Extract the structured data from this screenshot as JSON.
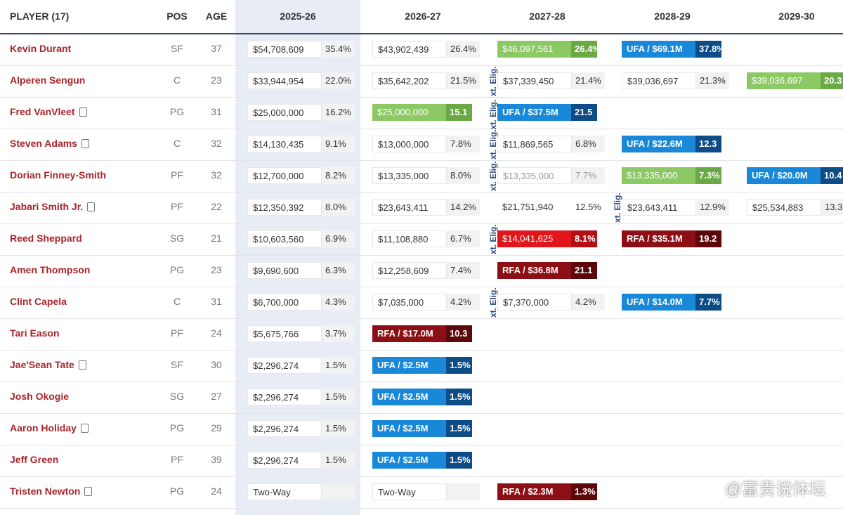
{
  "table": {
    "columns": [
      "PLAYER (17)",
      "POS",
      "AGE",
      "2025-26",
      "2026-27",
      "2027-28",
      "2028-29",
      "2029-30"
    ],
    "rows": [
      {
        "player": "Kevin Durant",
        "pos": "SF",
        "age": "37",
        "cells": [
          {
            "amount": "$54,708,609",
            "pct": "35.4%",
            "style": "plain"
          },
          {
            "amount": "$43,902,439",
            "pct": "26.4%",
            "style": "plain"
          },
          {
            "amount": "$46,097,561",
            "pct": "26.4%",
            "style": "green"
          },
          {
            "amount": "UFA / $69.1M",
            "pct": "37.8%",
            "style": "ufa"
          }
        ]
      },
      {
        "player": "Alperen Sengun",
        "pos": "C",
        "age": "23",
        "cells": [
          {
            "amount": "$33,944,954",
            "pct": "22.0%",
            "style": "plain"
          },
          {
            "amount": "$35,642,202",
            "pct": "21.5%",
            "style": "plain"
          },
          {
            "amount": "$37,339,450",
            "pct": "21.4%",
            "style": "plain",
            "ext": "xt. Elig."
          },
          {
            "amount": "$39,036,697",
            "pct": "21.3%",
            "style": "plain"
          },
          {
            "amount": "$39,036,697",
            "pct": "20.3",
            "style": "green"
          }
        ]
      },
      {
        "player": "Fred VanVleet",
        "pos": "PG",
        "age": "31",
        "icon": true,
        "cells": [
          {
            "amount": "$25,000,000",
            "pct": "16.2%",
            "style": "plain"
          },
          {
            "amount": "$25,000,000",
            "pct": "15.1",
            "style": "green"
          },
          {
            "amount": "UFA / $37.5M",
            "pct": "21.5",
            "style": "ufa"
          }
        ]
      },
      {
        "player": "Steven Adams",
        "pos": "C",
        "age": "32",
        "icon": true,
        "cells": [
          {
            "amount": "$14,130,435",
            "pct": "9.1%",
            "style": "plain"
          },
          {
            "amount": "$13,000,000",
            "pct": "7.8%",
            "style": "plain"
          },
          {
            "amount": "$11,869,565",
            "pct": "6.8%",
            "style": "plain",
            "ext": "xt. Elig.xt. Elig."
          },
          {
            "amount": "UFA / $22.6M",
            "pct": "12.3",
            "style": "ufa"
          }
        ]
      },
      {
        "player": "Dorian Finney-Smith",
        "pos": "PF",
        "age": "32",
        "cells": [
          {
            "amount": "$12,700,000",
            "pct": "8.2%",
            "style": "plain"
          },
          {
            "amount": "$13,335,000",
            "pct": "8.0%",
            "style": "plain"
          },
          {
            "amount": "$13,335,000",
            "pct": "7.7%",
            "style": "grey",
            "ext": "xt. Elig."
          },
          {
            "amount": "$13,335,000",
            "pct": "7.3%",
            "style": "green"
          },
          {
            "amount": "UFA / $20.0M",
            "pct": "10.4",
            "style": "ufa"
          }
        ]
      },
      {
        "player": "Jabari Smith Jr.",
        "pos": "PF",
        "age": "22",
        "icon": true,
        "cells": [
          {
            "amount": "$12,350,392",
            "pct": "8.0%",
            "style": "plain"
          },
          {
            "amount": "$23,643,411",
            "pct": "14.2%",
            "style": "plain"
          },
          {
            "amount": "$21,751,940",
            "pct": "12.5%",
            "style": "open"
          },
          {
            "amount": "$23,643,411",
            "pct": "12.9%",
            "style": "plain",
            "ext": "xt. Elig."
          },
          {
            "amount": "$25,534,883",
            "pct": "13.3",
            "style": "plain"
          }
        ]
      },
      {
        "player": "Reed Sheppard",
        "pos": "SG",
        "age": "21",
        "cells": [
          {
            "amount": "$10,603,560",
            "pct": "6.9%",
            "style": "plain"
          },
          {
            "amount": "$11,108,880",
            "pct": "6.7%",
            "style": "plain"
          },
          {
            "amount": "$14,041,625",
            "pct": "8.1%",
            "style": "red",
            "ext": "xt. Elig."
          },
          {
            "amount": "RFA / $35.1M",
            "pct": "19.2",
            "style": "rfa"
          }
        ]
      },
      {
        "player": "Amen Thompson",
        "pos": "PG",
        "age": "23",
        "cells": [
          {
            "amount": "$9,690,600",
            "pct": "6.3%",
            "style": "plain"
          },
          {
            "amount": "$12,258,609",
            "pct": "7.4%",
            "style": "plain"
          },
          {
            "amount": "RFA / $36.8M",
            "pct": "21.1",
            "style": "rfa"
          }
        ]
      },
      {
        "player": "Clint Capela",
        "pos": "C",
        "age": "31",
        "cells": [
          {
            "amount": "$6,700,000",
            "pct": "4.3%",
            "style": "plain"
          },
          {
            "amount": "$7,035,000",
            "pct": "4.2%",
            "style": "plain"
          },
          {
            "amount": "$7,370,000",
            "pct": "4.2%",
            "style": "plain",
            "ext": "xt. Elig."
          },
          {
            "amount": "UFA / $14.0M",
            "pct": "7.7%",
            "style": "ufa"
          }
        ]
      },
      {
        "player": "Tari Eason",
        "pos": "PF",
        "age": "24",
        "cells": [
          {
            "amount": "$5,675,766",
            "pct": "3.7%",
            "style": "plain"
          },
          {
            "amount": "RFA / $17.0M",
            "pct": "10.3",
            "style": "rfa"
          }
        ]
      },
      {
        "player": "Jae'Sean Tate",
        "pos": "SF",
        "age": "30",
        "icon": true,
        "cells": [
          {
            "amount": "$2,296,274",
            "pct": "1.5%",
            "style": "plain"
          },
          {
            "amount": "UFA / $2.5M",
            "pct": "1.5%",
            "style": "ufa"
          }
        ]
      },
      {
        "player": "Josh Okogie",
        "pos": "SG",
        "age": "27",
        "cells": [
          {
            "amount": "$2,296,274",
            "pct": "1.5%",
            "style": "plain"
          },
          {
            "amount": "UFA / $2.5M",
            "pct": "1.5%",
            "style": "ufa"
          }
        ]
      },
      {
        "player": "Aaron Holiday",
        "pos": "PG",
        "age": "29",
        "icon": true,
        "cells": [
          {
            "amount": "$2,296,274",
            "pct": "1.5%",
            "style": "plain"
          },
          {
            "amount": "UFA / $2.5M",
            "pct": "1.5%",
            "style": "ufa"
          }
        ]
      },
      {
        "player": "Jeff Green",
        "pos": "PF",
        "age": "39",
        "cells": [
          {
            "amount": "$2,296,274",
            "pct": "1.5%",
            "style": "plain"
          },
          {
            "amount": "UFA / $2.5M",
            "pct": "1.5%",
            "style": "ufa"
          }
        ]
      },
      {
        "player": "Tristen Newton",
        "pos": "PG",
        "age": "24",
        "icon": true,
        "cells": [
          {
            "amount": "Two-Way",
            "style": "plain"
          },
          {
            "amount": "Two-Way",
            "style": "plain"
          },
          {
            "amount": "RFA / $2.3M",
            "pct": "1.3%",
            "style": "rfa"
          }
        ]
      }
    ]
  },
  "watermark": "@富贵说体坛"
}
